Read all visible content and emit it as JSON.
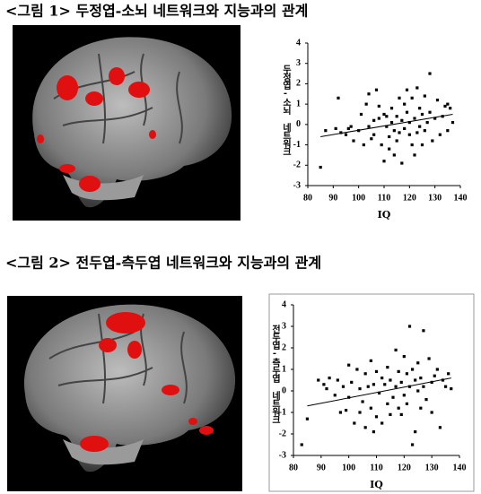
{
  "chart_data": [
    {
      "type": "scatter",
      "title": "<그림 1> 두정엽-소뇌 네트워크와 지능과의 관계",
      "x_label": "IQ",
      "y_label": "두정엽-소뇌 네트워크",
      "color": "#000000",
      "x": [
        85,
        87,
        92,
        93,
        95,
        96,
        100,
        101,
        102,
        103,
        104,
        104,
        105,
        106,
        107,
        108,
        108,
        109,
        110,
        110,
        111,
        112,
        112,
        113,
        113,
        114,
        114,
        115,
        115,
        116,
        116,
        117,
        117,
        118,
        118,
        119,
        119,
        120,
        120,
        121,
        121,
        122,
        122,
        123,
        123,
        124,
        124,
        125,
        125,
        126,
        126,
        127,
        128,
        128,
        129,
        130,
        131,
        132,
        133,
        134,
        135,
        136,
        137,
        135,
        111,
        106,
        98,
        97,
        91
      ],
      "values": [
        -2.1,
        -0.3,
        1.3,
        -0.4,
        -0.5,
        -0.2,
        -0.3,
        0.5,
        -1,
        1,
        1.5,
        -0.1,
        -0.7,
        -0.5,
        1.7,
        0.9,
        0.3,
        -1,
        -1.8,
        0.5,
        0.4,
        -0.6,
        -1.2,
        0.1,
        0.8,
        -0.3,
        -1.5,
        0.4,
        -0.8,
        1.3,
        -0.4,
        0.2,
        -1.9,
        1,
        -0.2,
        0.6,
        1.7,
        -0.5,
        0.1,
        1.3,
        -1,
        0.3,
        -1.5,
        1.8,
        -0.4,
        0.8,
        -0.1,
        0.5,
        -1,
        1.4,
        -0.3,
        0.1,
        2.5,
        0.6,
        -0.8,
        0.3,
        1.2,
        -0.5,
        0.4,
        0.9,
        -0.3,
        0.8,
        0.1,
        1,
        -0.1,
        0.2,
        -0.8,
        -0.1,
        -0.2
      ],
      "trendline": {
        "x": [
          85,
          137
        ],
        "y": [
          -0.6,
          0.5
        ]
      },
      "xlim": [
        80,
        140
      ],
      "ylim": [
        -3,
        4
      ],
      "xticks": [
        80,
        90,
        100,
        110,
        120,
        130,
        140
      ],
      "yticks": [
        -3,
        -2,
        -1,
        0,
        1,
        2,
        3,
        4
      ]
    },
    {
      "type": "scatter",
      "title": "<그림 2> 전두엽-측두엽 네트워크와 지능과의 관계",
      "x_label": "IQ",
      "y_label": "전두엽-측두엽 네트워크",
      "color": "#000000",
      "x": [
        83,
        85,
        89,
        91,
        92,
        93,
        95,
        96,
        99,
        100,
        100,
        101,
        102,
        103,
        104,
        104,
        105,
        106,
        106,
        107,
        108,
        108,
        109,
        110,
        110,
        111,
        112,
        112,
        113,
        114,
        114,
        115,
        115,
        116,
        117,
        117,
        118,
        118,
        119,
        119,
        120,
        120,
        121,
        121,
        122,
        122,
        123,
        123,
        124,
        124,
        125,
        125,
        126,
        126,
        127,
        127,
        128,
        129,
        130,
        130,
        131,
        132,
        133,
        134,
        135,
        136,
        137,
        98,
        97,
        109
      ],
      "values": [
        -2.5,
        -1.3,
        0.5,
        0.3,
        0.1,
        0.6,
        -0.2,
        0.5,
        -0.9,
        1.2,
        -0.3,
        0.4,
        -1.5,
        1,
        0.1,
        -1,
        -0.5,
        0.8,
        -1.7,
        0.2,
        -0.8,
        1.4,
        0.3,
        -1.2,
        0.9,
        -0.1,
        0.6,
        -1.5,
        0.3,
        -0.6,
        1.1,
        0.5,
        -1.1,
        -0.3,
        1.9,
        0.2,
        -0.8,
        0.9,
        -1.1,
        0.4,
        1.6,
        -0.2,
        0.8,
        -0.6,
        0.2,
        3,
        -2.5,
        1,
        0.5,
        -1.9,
        1.3,
        0,
        -0.8,
        0.6,
        2.8,
        0.2,
        -0.4,
        1.5,
        0.4,
        -1,
        0.7,
        1,
        -1.7,
        0.5,
        0.2,
        0.8,
        0.1,
        0.2,
        -1,
        -1.9
      ],
      "trendline": {
        "x": [
          85,
          137
        ],
        "y": [
          -0.7,
          0.6
        ]
      },
      "xlim": [
        80,
        140
      ],
      "ylim": [
        -3,
        4
      ],
      "xticks": [
        80,
        90,
        100,
        110,
        120,
        130,
        140
      ],
      "yticks": [
        -3,
        -2,
        -1,
        0,
        1,
        2,
        3,
        4
      ]
    }
  ]
}
